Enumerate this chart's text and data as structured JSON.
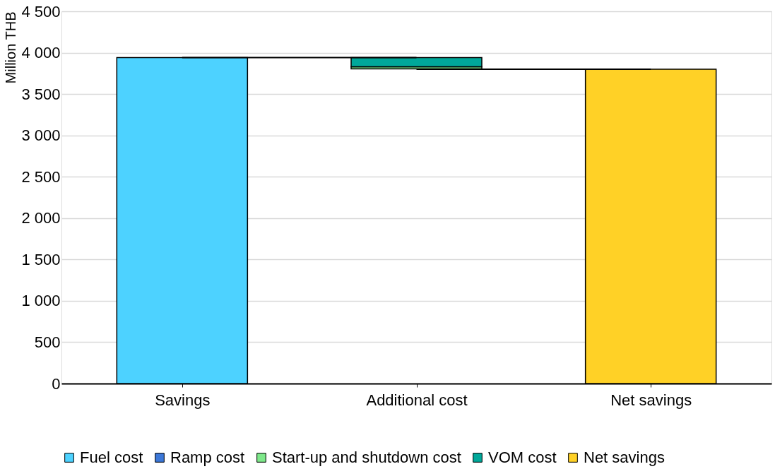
{
  "chart_data": {
    "type": "bar",
    "ylabel": "Million THB",
    "categories": [
      "Savings",
      "Additional cost",
      "Net savings"
    ],
    "series": [
      {
        "name": "Fuel cost",
        "color": "#4dd2ff",
        "values": [
          3940,
          null,
          null
        ],
        "base": [
          0,
          null,
          null
        ]
      },
      {
        "name": "Ramp cost",
        "color": "#3c78d8",
        "values": [
          null,
          null,
          null
        ],
        "base": [
          null,
          null,
          null
        ]
      },
      {
        "name": "Start-up and shutdown cost",
        "color": "#7ee88a",
        "values": [
          null,
          25,
          null
        ],
        "base": [
          null,
          3805,
          null
        ]
      },
      {
        "name": "VOM cost",
        "color": "#00a89a",
        "values": [
          null,
          110,
          null
        ],
        "base": [
          null,
          3830,
          null
        ]
      },
      {
        "name": "Net savings",
        "color": "#ffd126",
        "values": [
          null,
          null,
          3800
        ],
        "base": [
          null,
          null,
          0
        ]
      },
      {
        "type": "line",
        "color": "#000000",
        "values": [
          3940,
          3940,
          null
        ]
      },
      {
        "type": "line",
        "color": "#000000",
        "values": [
          null,
          3800,
          3800
        ]
      }
    ],
    "ylim": [
      0,
      4500
    ],
    "yticks": [
      0,
      500,
      {
        "value": 1000,
        "label": "1 000"
      },
      {
        "value": 1500,
        "label": "1 500"
      },
      {
        "value": 2000,
        "label": "2 000"
      },
      {
        "value": 2500,
        "label": "2 500"
      },
      {
        "value": 3000,
        "label": "3 000"
      },
      {
        "value": 3500,
        "label": "3 500"
      },
      {
        "value": 4000,
        "label": "4 000"
      },
      {
        "value": 4500,
        "label": "4 500"
      }
    ],
    "grid": "y",
    "legend": "bottom"
  }
}
